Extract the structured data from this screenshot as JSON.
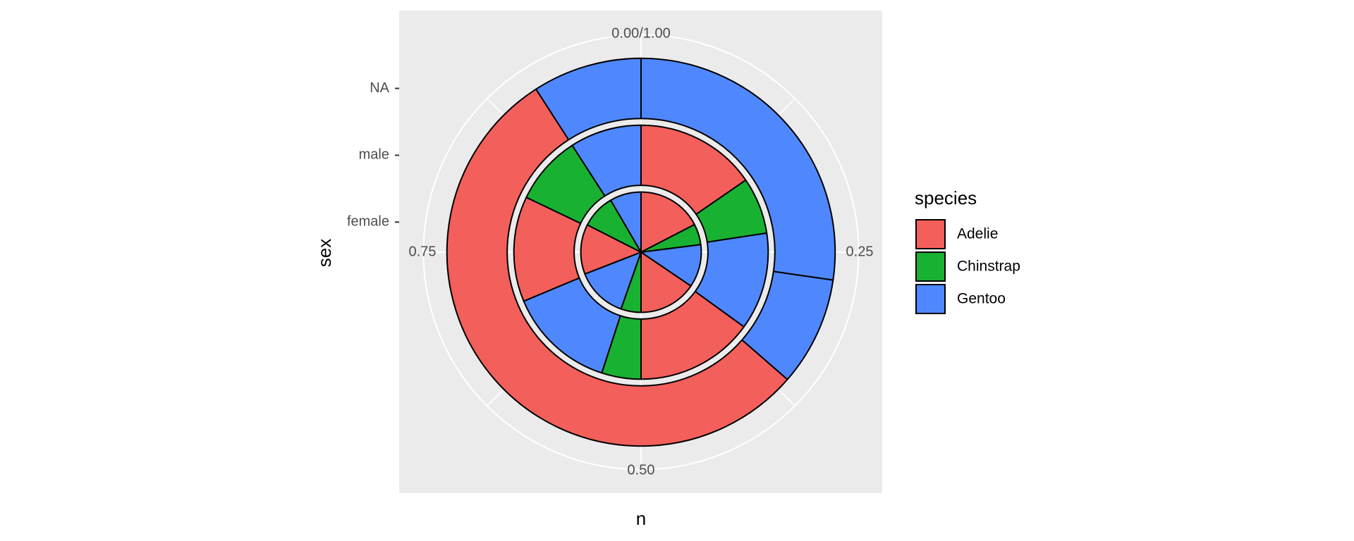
{
  "chart_data": {
    "type": "polar_stacked_bar",
    "x_label": "n",
    "y_label": "sex",
    "categories": [
      "female",
      "male",
      "NA"
    ],
    "theta_lim": [
      0,
      1
    ],
    "theta_ticks": [
      {
        "value": 0,
        "label": "0.00/1.00"
      },
      0.25,
      {
        "value": 0.5,
        "label": "0.50"
      },
      0.75
    ],
    "theta_minor_ticks": [
      0.125,
      0.375,
      0.625,
      0.875
    ],
    "legend": {
      "title": "species",
      "entries": [
        {
          "name": "Adelie",
          "color": "#f35f5b"
        },
        {
          "name": "Chinstrap",
          "color": "#19b131"
        },
        {
          "name": "Gentoo",
          "color": "#4f88fe"
        }
      ]
    },
    "rings": [
      {
        "values": [
          0.174,
          0.056,
          0.115,
          0.155,
          0.054,
          0.137,
          0.134,
          0.091,
          0.084
        ],
        "colors": [
          "#f35f5b",
          "#19b131",
          "#4f88fe",
          "#f35f5b",
          "#19b131",
          "#4f88fe",
          "#f35f5b",
          "#19b131",
          "#4f88fe"
        ]
      },
      {
        "values": [
          0.154,
          0.072,
          0.124,
          0.15,
          0.05,
          0.137,
          0.134,
          0.088,
          0.091
        ],
        "colors": [
          "#f35f5b",
          "#19b131",
          "#4f88fe",
          "#f35f5b",
          "#19b131",
          "#4f88fe",
          "#f35f5b",
          "#19b131",
          "#4f88fe"
        ]
      },
      {
        "values": [
          0.273,
          0.091,
          0.545,
          0.091
        ],
        "colors": [
          "#4f88fe",
          "#4f88fe",
          "#f35f5b",
          "#4f88fe"
        ]
      }
    ]
  }
}
